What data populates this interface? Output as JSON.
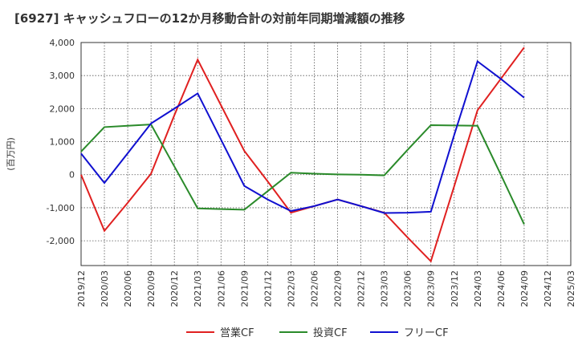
{
  "chart_data": {
    "type": "line",
    "title": "[6927]  キャッシュフローの12か月移動合計の対前年同期増減額の推移",
    "ylabel": "(百万円)",
    "xlabel": "",
    "ylim": [
      -2750,
      4000
    ],
    "yticks": [
      -2000,
      -1000,
      0,
      1000,
      2000,
      3000,
      4000
    ],
    "ytick_labels": [
      "-2,000",
      "-1,000",
      "0",
      "1,000",
      "2,000",
      "3,000",
      "4,000"
    ],
    "categories": [
      "2019/12",
      "2020/03",
      "2020/06",
      "2020/09",
      "2020/12",
      "2021/03",
      "2021/06",
      "2021/09",
      "2021/12",
      "2022/03",
      "2022/06",
      "2022/09",
      "2022/12",
      "2023/03",
      "2023/06",
      "2023/09",
      "2023/12",
      "2024/03",
      "2024/06",
      "2024/09",
      "2024/12",
      "2025/03"
    ],
    "series": [
      {
        "name": "営業CF",
        "color": "#e02020",
        "values": [
          0,
          -1700,
          -850,
          30,
          1800,
          3480,
          2100,
          720,
          -200,
          -1150,
          -950,
          -750,
          -950,
          -1150,
          -1900,
          -2620,
          -350,
          1950,
          2900,
          3850,
          null,
          null
        ]
      },
      {
        "name": "投資CF",
        "color": "#2a8a2a",
        "values": [
          700,
          1440,
          1480,
          1520,
          250,
          -1020,
          -1040,
          -1060,
          -500,
          60,
          30,
          10,
          0,
          -20,
          750,
          1500,
          1490,
          1480,
          0,
          -1500,
          null,
          null
        ]
      },
      {
        "name": "フリーCF",
        "color": "#1010d0",
        "values": [
          640,
          -250,
          650,
          1550,
          2000,
          2460,
          1060,
          -340,
          -750,
          -1100,
          -950,
          -750,
          -950,
          -1160,
          -1150,
          -1120,
          1200,
          3430,
          2900,
          2330,
          null,
          null
        ]
      }
    ]
  }
}
